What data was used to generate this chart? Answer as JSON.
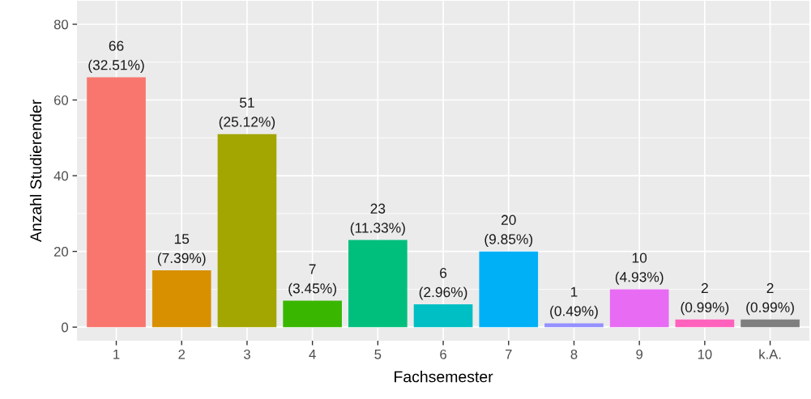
{
  "chart_data": {
    "type": "bar",
    "xlabel": "Fachsemester",
    "ylabel": "Anzahl Studierender",
    "categories": [
      "1",
      "2",
      "3",
      "4",
      "5",
      "6",
      "7",
      "8",
      "9",
      "10",
      "k.A."
    ],
    "values": [
      66,
      15,
      51,
      7,
      23,
      6,
      20,
      1,
      10,
      2,
      2
    ],
    "colors": [
      "#F8766D",
      "#D89000",
      "#A3A500",
      "#39B600",
      "#00BF7D",
      "#00BFC4",
      "#00B0F6",
      "#9590FF",
      "#E76BF3",
      "#FF62BC",
      "#7F7F7F"
    ],
    "value_labels": [
      "66\n(32.51%)",
      "15\n(7.39%)",
      "51\n(25.12%)",
      "7\n(3.45%)",
      "23\n(11.33%)",
      "6\n(2.96%)",
      "20\n(9.85%)",
      "1\n(0.49%)",
      "10\n(4.93%)",
      "2\n(0.99%)",
      "2\n(0.99%)"
    ],
    "ylim": [
      -3.6,
      86.2
    ],
    "yticks": [
      0,
      20,
      40,
      60,
      80
    ],
    "grid": true
  }
}
